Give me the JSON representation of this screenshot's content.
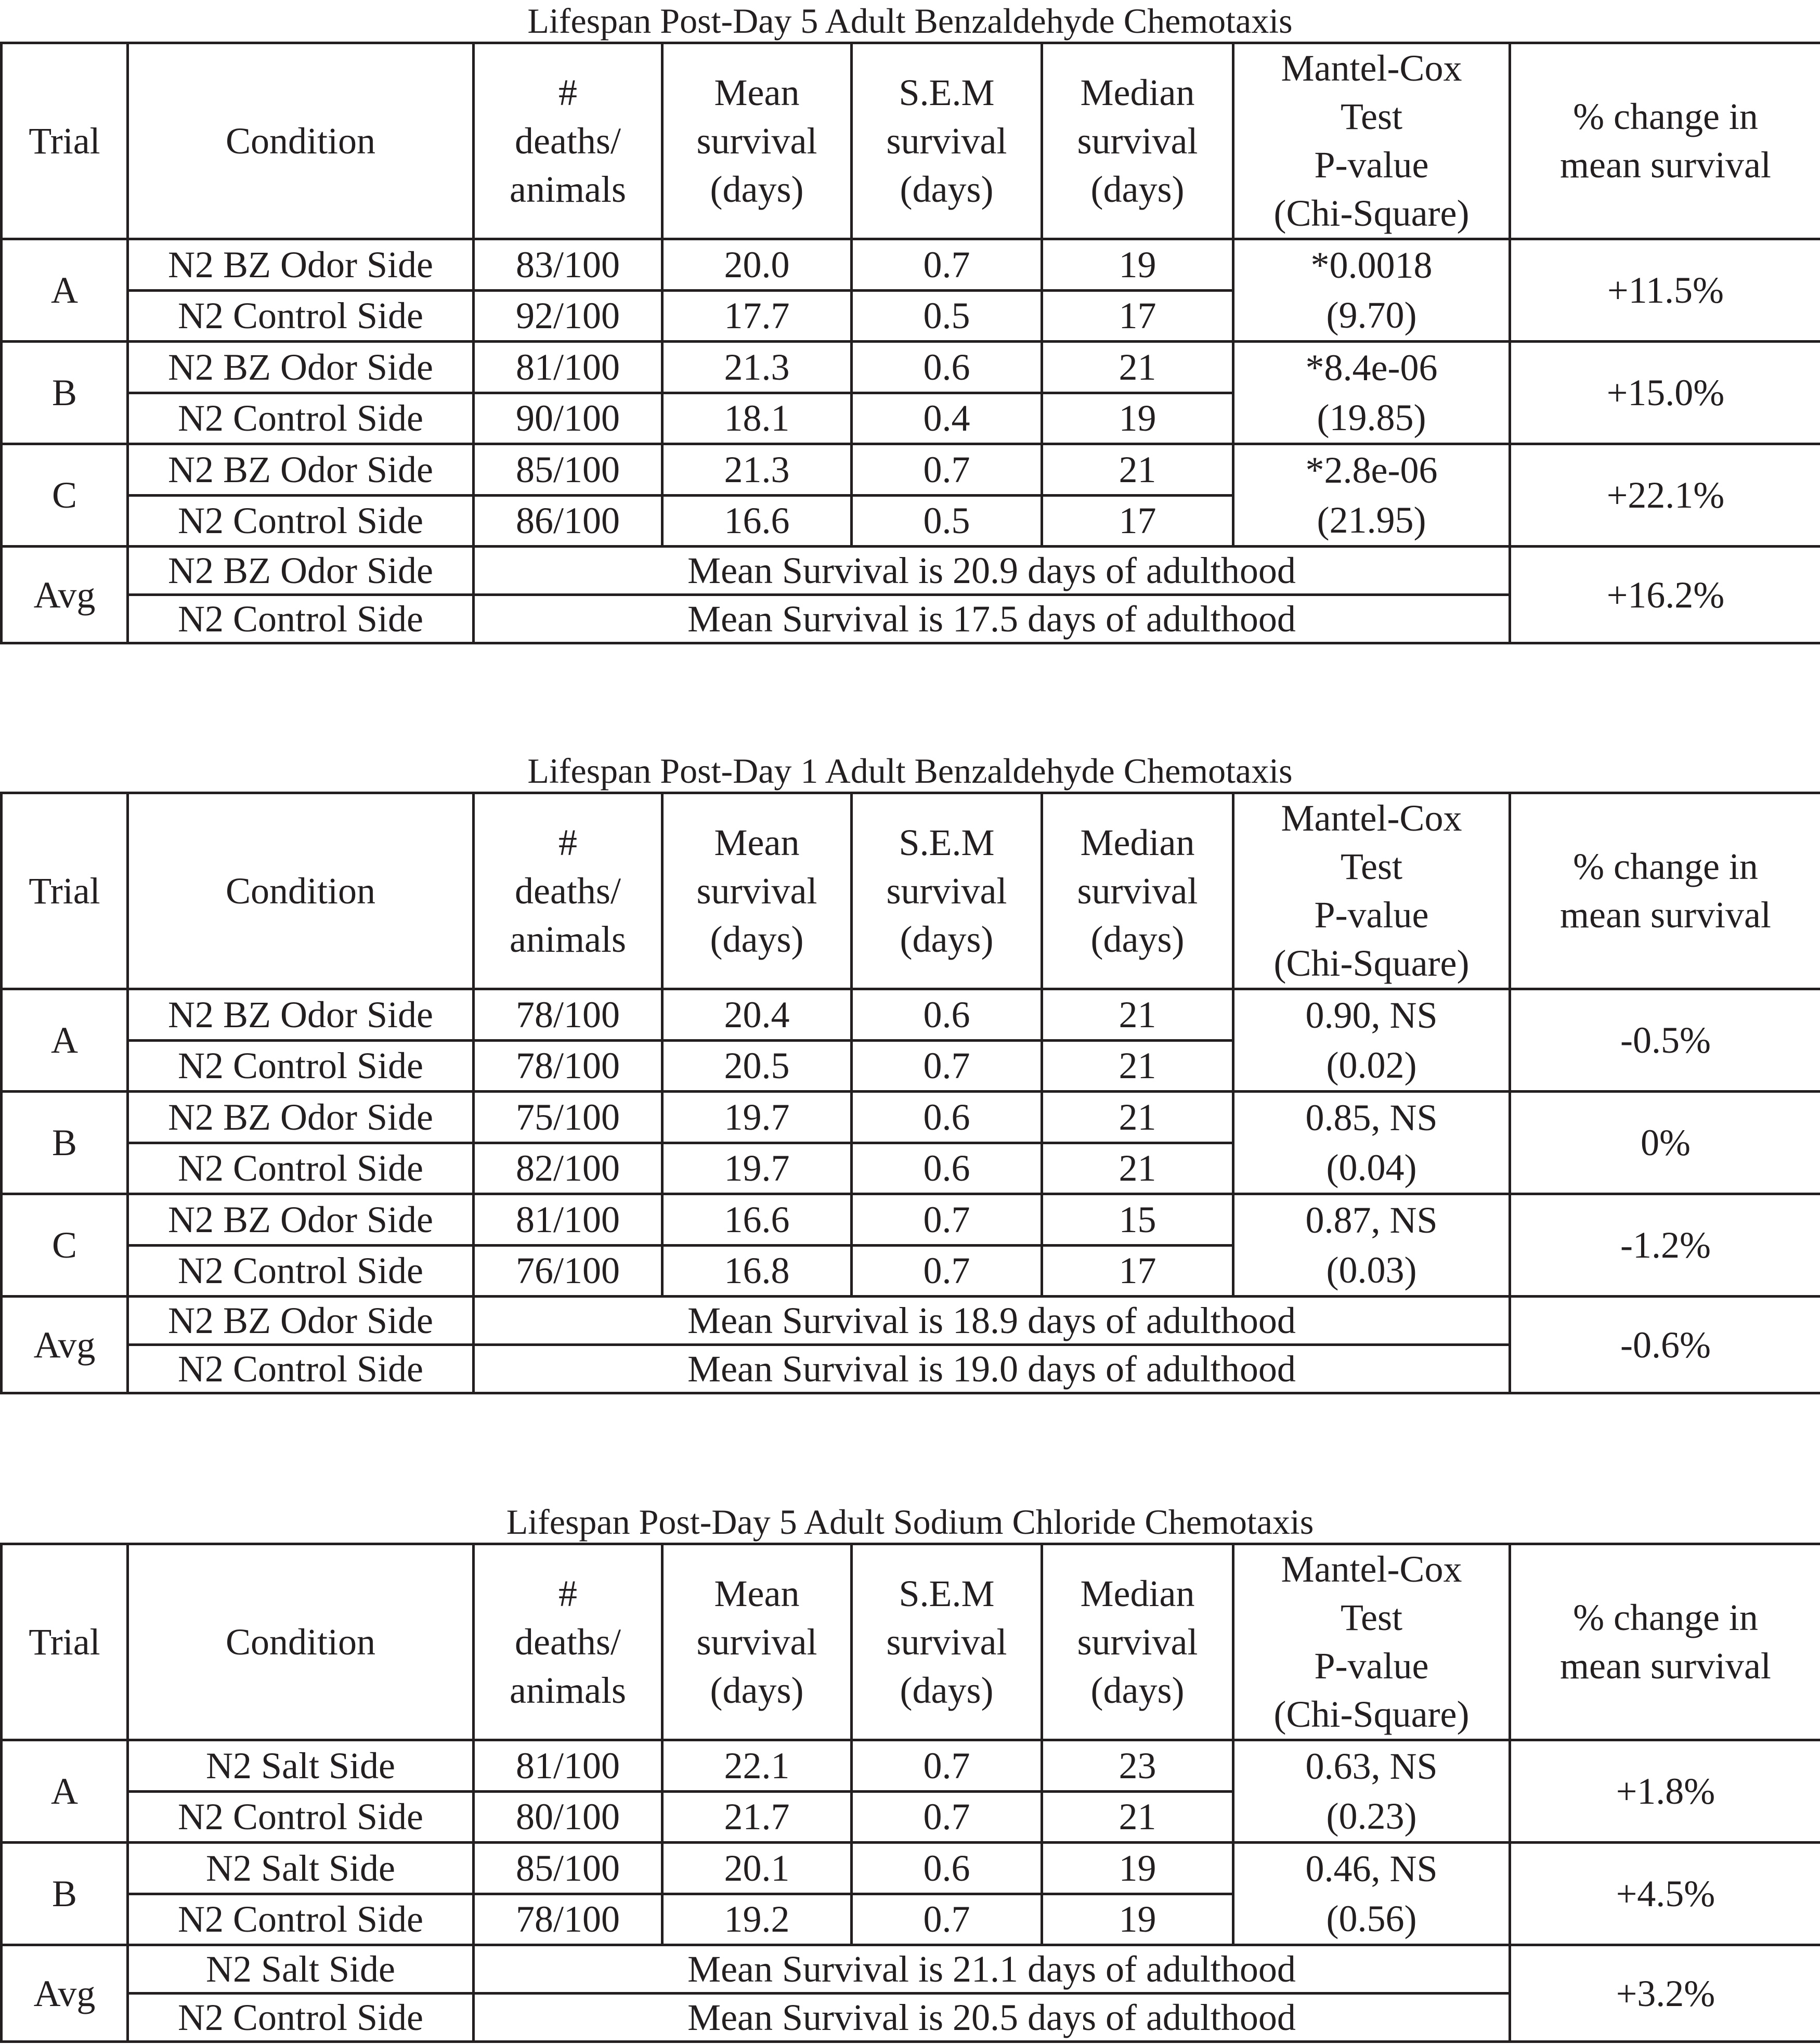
{
  "headers": {
    "trial": "Trial",
    "condition": "Condition",
    "deaths": [
      "#",
      "deaths/",
      "animals"
    ],
    "mean": [
      "Mean",
      "survival",
      "(days)"
    ],
    "sem": [
      "S.E.M",
      "survival",
      "(days)"
    ],
    "median": [
      "Median",
      "survival",
      "(days)"
    ],
    "pvalue": [
      "Mantel-Cox",
      "Test",
      "P-value",
      "(Chi-Square)"
    ],
    "change": [
      "% change in",
      "mean survival"
    ]
  },
  "tables": [
    {
      "title": "Lifespan Post-Day 5 Adult Benzaldehyde Chemotaxis",
      "trials": [
        {
          "label": "A",
          "pvalue": "*0.0018",
          "chi": "(9.70)",
          "change": "+11.5%",
          "rows": [
            {
              "condition": "N2 BZ Odor Side",
              "deaths": "83/100",
              "mean": "20.0",
              "sem": "0.7",
              "median": "19"
            },
            {
              "condition": "N2 Control Side",
              "deaths": "92/100",
              "mean": "17.7",
              "sem": "0.5",
              "median": "17"
            }
          ]
        },
        {
          "label": "B",
          "pvalue": "*8.4e-06",
          "chi": "(19.85)",
          "change": "+15.0%",
          "rows": [
            {
              "condition": "N2 BZ Odor Side",
              "deaths": "81/100",
              "mean": "21.3",
              "sem": "0.6",
              "median": "21"
            },
            {
              "condition": "N2 Control Side",
              "deaths": "90/100",
              "mean": "18.1",
              "sem": "0.4",
              "median": "19"
            }
          ]
        },
        {
          "label": "C",
          "pvalue": "*2.8e-06",
          "chi": "(21.95)",
          "change": "+22.1%",
          "rows": [
            {
              "condition": "N2 BZ Odor Side",
              "deaths": "85/100",
              "mean": "21.3",
              "sem": "0.7",
              "median": "21"
            },
            {
              "condition": "N2 Control Side",
              "deaths": "86/100",
              "mean": "16.6",
              "sem": "0.5",
              "median": "17"
            }
          ]
        }
      ],
      "avg": {
        "label": "Avg",
        "change": "+16.2%",
        "rows": [
          {
            "condition": "N2 BZ Odor Side",
            "text": "Mean Survival is 20.9 days of adulthood"
          },
          {
            "condition": "N2 Control Side",
            "text": "Mean Survival is 17.5 days of adulthood"
          }
        ]
      }
    },
    {
      "title": "Lifespan Post-Day 1 Adult Benzaldehyde Chemotaxis",
      "trials": [
        {
          "label": "A",
          "pvalue": "0.90, NS",
          "chi": "(0.02)",
          "change": "-0.5%",
          "rows": [
            {
              "condition": "N2 BZ Odor Side",
              "deaths": "78/100",
              "mean": "20.4",
              "sem": "0.6",
              "median": "21"
            },
            {
              "condition": "N2 Control Side",
              "deaths": "78/100",
              "mean": "20.5",
              "sem": "0.7",
              "median": "21"
            }
          ]
        },
        {
          "label": "B",
          "pvalue": "0.85, NS",
          "chi": "(0.04)",
          "change": "0%",
          "rows": [
            {
              "condition": "N2 BZ Odor Side",
              "deaths": "75/100",
              "mean": "19.7",
              "sem": "0.6",
              "median": "21"
            },
            {
              "condition": "N2 Control Side",
              "deaths": "82/100",
              "mean": "19.7",
              "sem": "0.6",
              "median": "21"
            }
          ]
        },
        {
          "label": "C",
          "pvalue": "0.87, NS",
          "chi": "(0.03)",
          "change": "-1.2%",
          "rows": [
            {
              "condition": "N2 BZ Odor Side",
              "deaths": "81/100",
              "mean": "16.6",
              "sem": "0.7",
              "median": "15"
            },
            {
              "condition": "N2 Control Side",
              "deaths": "76/100",
              "mean": "16.8",
              "sem": "0.7",
              "median": "17"
            }
          ]
        }
      ],
      "avg": {
        "label": "Avg",
        "change": "-0.6%",
        "rows": [
          {
            "condition": "N2 BZ Odor Side",
            "text": "Mean Survival is 18.9 days of adulthood"
          },
          {
            "condition": "N2 Control Side",
            "text": "Mean Survival is 19.0 days of adulthood"
          }
        ]
      }
    },
    {
      "title": "Lifespan Post-Day 5 Adult Sodium Chloride Chemotaxis",
      "trials": [
        {
          "label": "A",
          "pvalue": "0.63, NS",
          "chi": "(0.23)",
          "change": "+1.8%",
          "rows": [
            {
              "condition": "N2 Salt Side",
              "deaths": "81/100",
              "mean": "22.1",
              "sem": "0.7",
              "median": "23"
            },
            {
              "condition": "N2 Control Side",
              "deaths": "80/100",
              "mean": "21.7",
              "sem": "0.7",
              "median": "21"
            }
          ]
        },
        {
          "label": "B",
          "pvalue": "0.46, NS",
          "chi": "(0.56)",
          "change": "+4.5%",
          "rows": [
            {
              "condition": "N2 Salt Side",
              "deaths": "85/100",
              "mean": "20.1",
              "sem": "0.6",
              "median": "19"
            },
            {
              "condition": "N2 Control Side",
              "deaths": "78/100",
              "mean": "19.2",
              "sem": "0.7",
              "median": "19"
            }
          ]
        }
      ],
      "avg": {
        "label": "Avg",
        "change": "+3.2%",
        "rows": [
          {
            "condition": "N2 Salt Side",
            "text": "Mean Survival is 21.1 days of adulthood"
          },
          {
            "condition": "N2 Control Side",
            "text": "Mean Survival is 20.5 days of adulthood"
          }
        ]
      }
    }
  ]
}
